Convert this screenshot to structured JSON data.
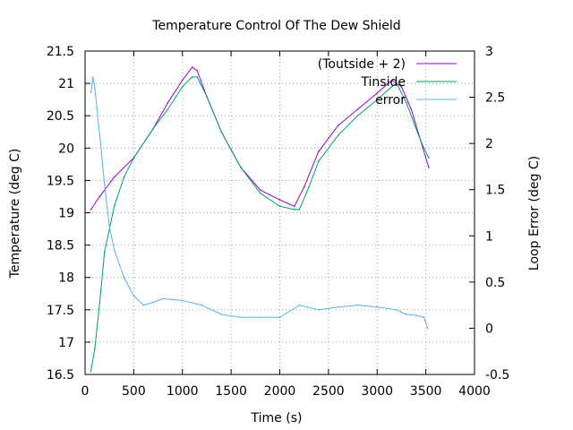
{
  "chart_data": {
    "type": "line",
    "title": "Temperature Control Of The Dew Shield",
    "xlabel": "Time (s)",
    "ylabel": "Temperature (deg C)",
    "y2label": "Loop Error (deg C)",
    "xlim": [
      0,
      4000
    ],
    "ylim": [
      16.5,
      21.5
    ],
    "y2lim": [
      -0.5,
      3
    ],
    "xticks": [
      "0",
      "500",
      "1000",
      "1500",
      "2000",
      "2500",
      "3000",
      "3500",
      "4000"
    ],
    "yticks": [
      "16.5",
      "17",
      "17.5",
      "18",
      "18.5",
      "19",
      "19.5",
      "20",
      "20.5",
      "21",
      "21.5"
    ],
    "y2ticks": [
      "-0.5",
      "0",
      "0.5",
      "1",
      "1.5",
      "2",
      "2.5",
      "3"
    ],
    "grid": true,
    "legend_position": "top-right",
    "series": [
      {
        "name": "(Toutside + 2)",
        "color": "#9400d3",
        "axis": "left",
        "x": [
          60,
          150,
          300,
          500,
          700,
          850,
          1000,
          1100,
          1150,
          1250,
          1400,
          1600,
          1800,
          2000,
          2150,
          2250,
          2400,
          2600,
          2800,
          3000,
          3150,
          3250,
          3350,
          3450,
          3530
        ],
        "y": [
          19.05,
          19.25,
          19.55,
          19.85,
          20.3,
          20.7,
          21.05,
          21.25,
          21.2,
          20.8,
          20.25,
          19.7,
          19.35,
          19.2,
          19.1,
          19.4,
          19.95,
          20.35,
          20.6,
          20.85,
          21.05,
          20.95,
          20.6,
          20.1,
          19.7
        ]
      },
      {
        "name": "Tinside",
        "color": "#009e73",
        "axis": "left",
        "x": [
          60,
          100,
          150,
          200,
          300,
          400,
          500,
          700,
          850,
          1000,
          1100,
          1150,
          1250,
          1400,
          1600,
          1800,
          2000,
          2150,
          2200,
          2300,
          2400,
          2600,
          2800,
          3000,
          3150,
          3200,
          3300,
          3450,
          3530
        ],
        "y": [
          16.55,
          16.9,
          17.6,
          18.4,
          19.1,
          19.55,
          19.85,
          20.3,
          20.6,
          20.95,
          21.1,
          21.1,
          20.8,
          20.25,
          19.7,
          19.3,
          19.1,
          19.05,
          19.05,
          19.4,
          19.8,
          20.2,
          20.5,
          20.75,
          20.95,
          21.0,
          20.7,
          20.1,
          19.85
        ]
      },
      {
        "name": "error",
        "color": "#56b4e9",
        "axis": "right",
        "x": [
          60,
          80,
          100,
          150,
          200,
          250,
          300,
          400,
          500,
          600,
          700,
          800,
          1000,
          1200,
          1400,
          1600,
          1800,
          2000,
          2200,
          2400,
          2600,
          2800,
          3000,
          3200,
          3300,
          3400,
          3480,
          3520
        ],
        "y": [
          2.55,
          2.72,
          2.6,
          2.1,
          1.55,
          1.1,
          0.85,
          0.55,
          0.35,
          0.25,
          0.28,
          0.32,
          0.3,
          0.25,
          0.15,
          0.12,
          0.12,
          0.12,
          0.25,
          0.2,
          0.23,
          0.25,
          0.23,
          0.2,
          0.15,
          0.14,
          0.12,
          0.0
        ]
      }
    ]
  }
}
